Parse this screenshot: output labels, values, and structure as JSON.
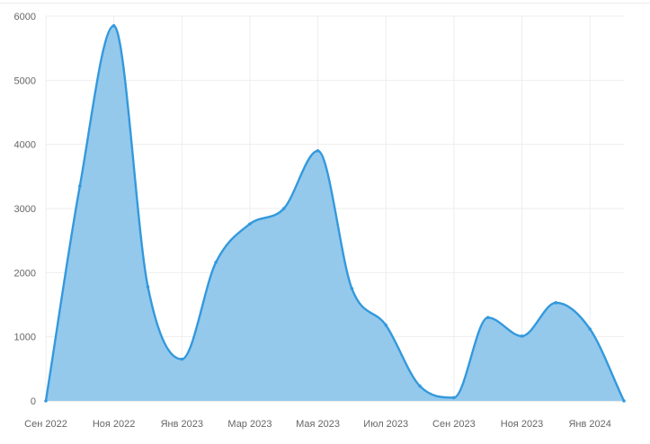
{
  "chart_data": {
    "type": "area",
    "title": "",
    "xlabel": "",
    "ylabel": "",
    "ylim": [
      0,
      6000
    ],
    "y_ticks": [
      0,
      1000,
      2000,
      3000,
      4000,
      5000,
      6000
    ],
    "x_tick_labels": [
      "Сен 2022",
      "Ноя 2022",
      "Янв 2023",
      "Мар 2023",
      "Мая 2023",
      "Июл 2023",
      "Сен 2023",
      "Ноя 2023",
      "Янв 2024"
    ],
    "grid": true,
    "legend": "none",
    "x": [
      "2022-09",
      "2022-10",
      "2022-11",
      "2022-12",
      "2023-01",
      "2023-02",
      "2023-03",
      "2023-04",
      "2023-05",
      "2023-06",
      "2023-07",
      "2023-08",
      "2023-09",
      "2023-10",
      "2023-11",
      "2023-12",
      "2024-01",
      "2024-02"
    ],
    "series": [
      {
        "values": [
          0,
          3350,
          5850,
          1780,
          650,
          2160,
          2760,
          3000,
          3900,
          1750,
          1180,
          230,
          50,
          1300,
          1010,
          1530,
          1120,
          0
        ]
      }
    ],
    "colors": {
      "line": "#3399dd",
      "fill": "#94c9ec"
    }
  }
}
